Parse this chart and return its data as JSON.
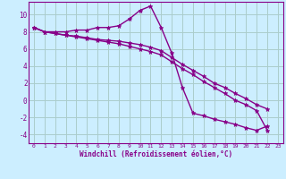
{
  "background_color": "#cceeff",
  "grid_color": "#aacccc",
  "line_color": "#880088",
  "marker": "*",
  "xlabel": "Windchill (Refroidissement éolien,°C)",
  "xlim": [
    -0.5,
    23.5
  ],
  "ylim": [
    -5.0,
    11.5
  ],
  "yticks": [
    -4,
    -2,
    0,
    2,
    4,
    6,
    8,
    10
  ],
  "xticks": [
    0,
    1,
    2,
    3,
    4,
    5,
    6,
    7,
    8,
    9,
    10,
    11,
    12,
    13,
    14,
    15,
    16,
    17,
    18,
    19,
    20,
    21,
    22,
    23
  ],
  "x_values": [
    0,
    1,
    2,
    3,
    4,
    5,
    6,
    7,
    8,
    9,
    10,
    11,
    12,
    13,
    14,
    15,
    16,
    17,
    18,
    19,
    20,
    21,
    22
  ],
  "s1": [
    8.5,
    8.0,
    8.0,
    8.0,
    8.2,
    8.2,
    8.5,
    8.5,
    8.7,
    9.5,
    10.5,
    11.0,
    8.5,
    5.5,
    1.5,
    -1.5,
    -1.8,
    -2.2,
    -2.5,
    -2.8,
    -3.2,
    -3.5,
    -3.0
  ],
  "s2": [
    8.5,
    8.0,
    7.8,
    7.6,
    7.5,
    7.3,
    7.1,
    7.0,
    6.9,
    6.7,
    6.5,
    6.2,
    5.8,
    5.0,
    4.2,
    3.5,
    2.8,
    2.0,
    1.5,
    0.8,
    0.2,
    -0.5,
    -1.0
  ],
  "s3": [
    8.5,
    8.0,
    7.8,
    7.6,
    7.4,
    7.2,
    7.0,
    6.8,
    6.6,
    6.3,
    6.0,
    5.7,
    5.3,
    4.5,
    3.7,
    3.0,
    2.2,
    1.5,
    0.8,
    0.0,
    -0.5,
    -1.2,
    -3.5
  ]
}
